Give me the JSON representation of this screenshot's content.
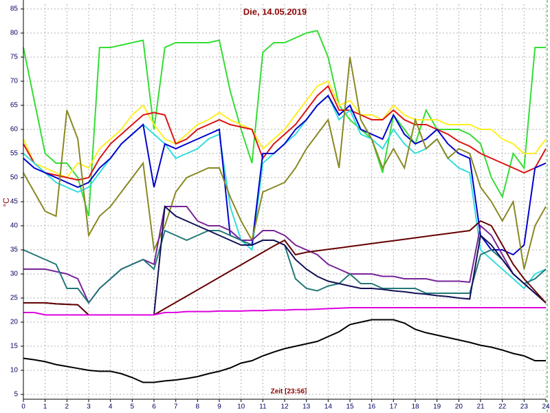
{
  "chart_data": {
    "type": "line",
    "title": "Die, 14.05.2019",
    "x_label": "Zeit [23:56]",
    "y_label": "°C",
    "x": [
      0,
      0.5,
      1,
      1.5,
      2,
      2.5,
      3,
      3.5,
      4,
      4.5,
      5,
      5.5,
      6,
      6.5,
      7,
      7.5,
      8,
      8.5,
      9,
      9.5,
      10,
      10.5,
      11,
      11.5,
      12,
      12.5,
      13,
      13.5,
      14,
      14.5,
      15,
      15.5,
      16,
      16.5,
      17,
      17.5,
      18,
      18.5,
      19,
      19.5,
      20,
      20.5,
      21,
      21.5,
      22,
      22.5,
      23,
      23.5,
      24
    ],
    "xlim": [
      0,
      24
    ],
    "xticks": [
      0,
      1,
      2,
      3,
      4,
      5,
      6,
      7,
      8,
      9,
      10,
      11,
      12,
      13,
      14,
      15,
      16,
      17,
      18,
      19,
      20,
      21,
      22,
      23,
      24
    ],
    "ylim": [
      4,
      86
    ],
    "yticks": [
      5,
      10,
      15,
      20,
      25,
      30,
      35,
      40,
      45,
      50,
      55,
      60,
      65,
      70,
      75,
      80,
      85
    ],
    "grid": true,
    "series": [
      {
        "color": "#33dd33",
        "values": [
          77,
          66,
          55,
          53,
          53,
          50,
          42,
          77,
          77,
          77.5,
          78,
          78.5,
          60,
          77,
          78,
          78,
          78,
          78,
          78.5,
          68,
          60,
          53,
          76,
          78,
          78,
          79,
          80,
          80.5,
          75,
          65,
          62,
          60,
          58,
          51,
          63,
          60,
          57,
          64,
          60,
          60,
          60,
          59,
          57,
          50,
          46,
          55,
          52,
          77,
          77
        ]
      },
      {
        "color": "#ffee22",
        "values": [
          58,
          53,
          52,
          51,
          50,
          53,
          52,
          56,
          58,
          60,
          63,
          65,
          61,
          58,
          57,
          59,
          61,
          62,
          63.5,
          62,
          61,
          60,
          56,
          58,
          60,
          63,
          66,
          69,
          70,
          65,
          66,
          63,
          63,
          62,
          65,
          63,
          62,
          62,
          62,
          61,
          61,
          61,
          60,
          60,
          58,
          57,
          55,
          55,
          58
        ]
      },
      {
        "color": "#dd1111",
        "values": [
          57,
          53,
          51,
          50.5,
          50,
          49.5,
          50,
          54,
          57,
          59,
          61,
          63,
          63.5,
          63,
          57,
          58,
          60,
          61,
          62,
          61,
          60.5,
          60,
          54,
          57,
          59,
          61,
          64,
          67,
          69,
          64,
          64,
          63,
          62,
          62,
          64,
          62,
          61,
          61,
          60,
          59,
          57.5,
          56.5,
          55,
          54,
          53,
          52,
          51,
          52,
          56
        ]
      },
      {
        "color": "#33dddd",
        "values": [
          55,
          53,
          51,
          49,
          48,
          47,
          48,
          51,
          54,
          57,
          59,
          61,
          59,
          57,
          54,
          55,
          56,
          58,
          59,
          44,
          37,
          35,
          53,
          55,
          57,
          59,
          62,
          65,
          67,
          62,
          64,
          59,
          58,
          56,
          60,
          57,
          55,
          56,
          58,
          54,
          52,
          51,
          35,
          33,
          31,
          29,
          27,
          30,
          31
        ]
      },
      {
        "color": "#0000cc",
        "values": [
          54,
          52,
          51,
          50,
          49,
          48,
          49,
          52,
          54,
          57,
          59,
          61,
          48,
          57,
          56,
          57,
          58,
          59,
          60,
          38,
          37,
          36,
          55,
          55,
          57,
          60,
          62,
          65,
          67,
          63,
          65,
          60,
          59,
          58,
          63,
          59,
          57,
          58,
          60,
          57,
          55,
          54,
          38,
          35,
          35,
          34,
          36,
          52,
          53
        ]
      },
      {
        "color": "#888822",
        "values": [
          51,
          47,
          43,
          42,
          64,
          58,
          38,
          42,
          44,
          47,
          50,
          53,
          35,
          40,
          47,
          50,
          51,
          52,
          52,
          46,
          41,
          37,
          47,
          48,
          49,
          52,
          56,
          59,
          62,
          52,
          75,
          62,
          58,
          52,
          56,
          52,
          62,
          56,
          58,
          54,
          56,
          55,
          48,
          45,
          41,
          45,
          31,
          40,
          44
        ]
      },
      {
        "color": "#772299",
        "values": [
          31,
          31,
          31,
          30.5,
          30,
          29,
          24,
          27,
          29,
          31,
          32,
          33,
          32,
          44,
          44,
          44,
          41,
          40,
          40,
          39,
          37,
          37,
          39,
          39,
          38,
          36,
          35,
          34,
          32,
          31,
          30,
          30,
          30,
          29.5,
          29.5,
          29,
          29,
          29,
          28.5,
          28.5,
          28.5,
          28.3,
          40,
          38,
          34,
          30,
          28,
          26,
          24
        ]
      },
      {
        "color": "#227777",
        "values": [
          35,
          34,
          33,
          32,
          27,
          27,
          24,
          27,
          29,
          31,
          32,
          33,
          31,
          39,
          38,
          37,
          38,
          39,
          39,
          38,
          37,
          36,
          37,
          37,
          36,
          29,
          27,
          26.5,
          27.5,
          28,
          30,
          28,
          28,
          27,
          27,
          27,
          27,
          26,
          26,
          26,
          26,
          26,
          34,
          35,
          33,
          30,
          28,
          29,
          31
        ]
      },
      {
        "color": "#111155",
        "values": [
          24,
          24,
          24,
          23.8,
          23.7,
          23.6,
          21.5,
          21.5,
          21.5,
          21.5,
          21.5,
          21.5,
          21.5,
          44,
          42,
          41,
          40,
          39,
          38,
          37,
          36,
          36,
          37,
          37,
          36,
          33,
          31,
          29.5,
          28.5,
          28,
          27.5,
          27,
          27,
          26.8,
          26.5,
          26.3,
          26,
          25.8,
          25.5,
          25.3,
          25,
          24.8,
          38,
          36,
          33,
          30,
          28,
          26,
          24
        ]
      },
      {
        "color": "#660000",
        "values": [
          24,
          24,
          24,
          23.8,
          23.7,
          23.6,
          21.5,
          21.5,
          21.5,
          21.5,
          21.5,
          21.5,
          21.5,
          22.8,
          24.1,
          25.4,
          26.7,
          28,
          29.3,
          30.6,
          31.9,
          33.2,
          34.5,
          35.8,
          37,
          34,
          34.5,
          34.8,
          35.1,
          35.4,
          35.7,
          36,
          36.3,
          36.6,
          36.9,
          37.2,
          37.5,
          37.8,
          38.1,
          38.4,
          38.7,
          39,
          41,
          40,
          36,
          32,
          29,
          26.5,
          24
        ]
      },
      {
        "color": "#dd00dd",
        "values": [
          22,
          22,
          21.5,
          21.5,
          21.5,
          21.5,
          21.5,
          21.5,
          21.5,
          21.5,
          21.5,
          21.5,
          21.5,
          22,
          22,
          22.2,
          22.2,
          22.2,
          22.3,
          22.3,
          22.3,
          22.4,
          22.4,
          22.5,
          22.5,
          22.6,
          22.6,
          22.7,
          22.8,
          22.9,
          23,
          23,
          23,
          23,
          23,
          23,
          23,
          23,
          23,
          23,
          23,
          23,
          23,
          23,
          23,
          23,
          23,
          23,
          23
        ]
      },
      {
        "color": "#000000",
        "values": [
          12.5,
          12.2,
          11.8,
          11.2,
          10.8,
          10.4,
          10,
          9.8,
          9.8,
          9.3,
          8.5,
          7.5,
          7.5,
          7.8,
          8,
          8.3,
          8.7,
          9.3,
          9.8,
          10.5,
          11.5,
          12,
          13,
          13.8,
          14.5,
          15,
          15.5,
          16,
          17,
          18,
          19.5,
          20,
          20.5,
          20.5,
          20.5,
          19.8,
          18.5,
          17.8,
          17.3,
          16.8,
          16.3,
          15.8,
          15.2,
          14.8,
          14.2,
          13.5,
          13,
          12,
          12
        ]
      }
    ]
  }
}
